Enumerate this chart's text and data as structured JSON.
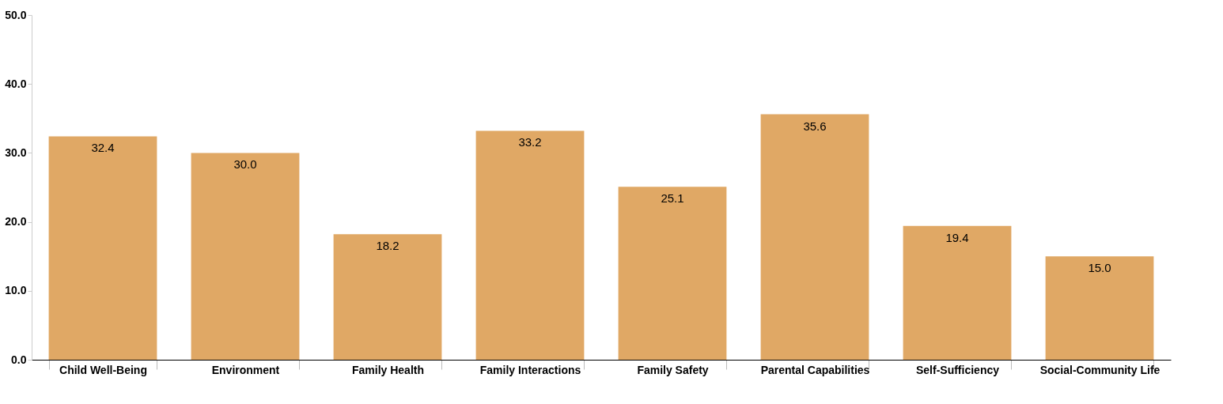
{
  "chart_data": {
    "type": "bar",
    "categories": [
      "Child Well-Being",
      "Environment",
      "Family Health",
      "Family Interactions",
      "Family Safety",
      "Parental Capabilities",
      "Self-Sufficiency",
      "Social-Community Life"
    ],
    "values": [
      32.4,
      30.0,
      18.2,
      33.2,
      25.1,
      35.6,
      19.4,
      15.0
    ],
    "value_labels": [
      "32.4",
      "30.0",
      "18.2",
      "33.2",
      "25.1",
      "35.6",
      "19.4",
      "15.0"
    ],
    "color": "#e0a865",
    "ylim": [
      0,
      50
    ],
    "yticks": [
      {
        "value": 0,
        "label": "0.0"
      },
      {
        "value": 10,
        "label": "10.0"
      },
      {
        "value": 20,
        "label": "20.0"
      },
      {
        "value": 30,
        "label": "30.0"
      },
      {
        "value": 40,
        "label": "40.0"
      },
      {
        "value": 50,
        "label": "50.0"
      }
    ],
    "grid": false
  }
}
